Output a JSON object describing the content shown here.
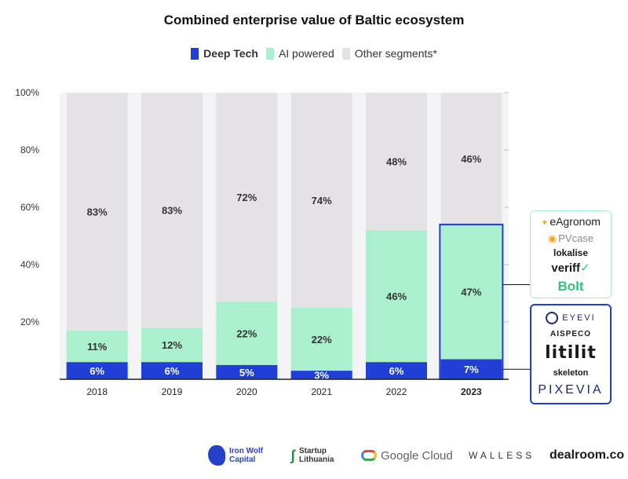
{
  "chart_data": {
    "type": "bar",
    "stacked": true,
    "title": "Combined enterprise value of Baltic ecosystem",
    "categories": [
      "2018",
      "2019",
      "2020",
      "2021",
      "2022",
      "2023"
    ],
    "highlight_category": "2023",
    "y_ticks": [
      "20%",
      "40%",
      "60%",
      "80%",
      "100%"
    ],
    "ylim": [
      0,
      100
    ],
    "series": [
      {
        "name": "Deep Tech",
        "color": "#1f3fd6",
        "values": [
          6,
          6,
          5,
          3,
          6,
          7
        ],
        "labels": [
          "6%",
          "6%",
          "5%",
          "3%",
          "6%",
          "7%"
        ]
      },
      {
        "name": "AI powered",
        "color": "#aaf0ce",
        "values": [
          11,
          12,
          22,
          22,
          46,
          47
        ],
        "labels": [
          "11%",
          "12%",
          "22%",
          "22%",
          "46%",
          "47%"
        ]
      },
      {
        "name": "Other segments*",
        "color": "#e4e2e5",
        "values": [
          83,
          83,
          72,
          74,
          48,
          46
        ],
        "labels": [
          "83%",
          "83%",
          "72%",
          "74%",
          "48%",
          "46%"
        ]
      }
    ]
  },
  "colors": {
    "deep": "#1f3fd6",
    "ai": "#aaf0ce",
    "other": "#e4e2e5",
    "gap": "#f4f4f6",
    "label": "#333333",
    "deep_label": "#ffffff"
  },
  "legend": {
    "deep": "Deep Tech",
    "ai": "AI powered",
    "other": "Other segments*"
  },
  "ai_logos": {
    "egr": "eAgronom",
    "pv": "PVcase",
    "lok": "lokalise",
    "ver": "veriff",
    "bolt": "Bolt"
  },
  "deep_logos": {
    "eyevi": "EYEVI",
    "aisp": "AISPECO",
    "tilit": "litilit",
    "skel": "skeleton",
    "pix": "PIXEVIA"
  },
  "footer": {
    "ironwolf": "Iron Wolf\nCapital",
    "startup": "Startup\nLithuania",
    "google": "Google Cloud",
    "walless": "WALLESS",
    "dealroom": "dealroom.co"
  }
}
